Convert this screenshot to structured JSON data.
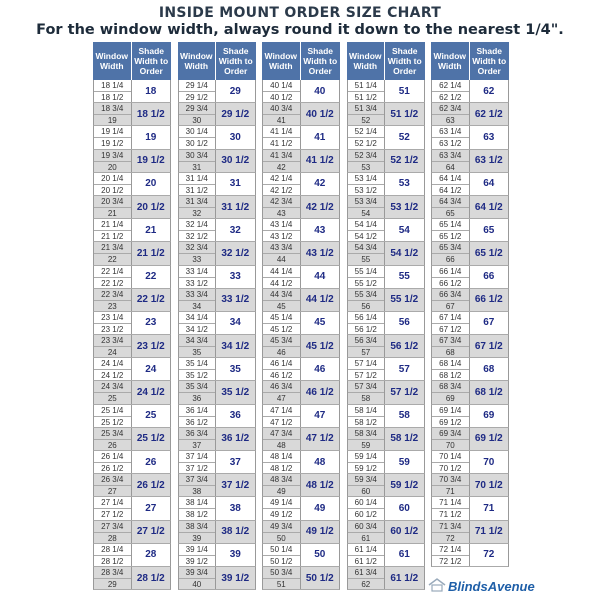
{
  "title": "INSIDE MOUNT ORDER SIZE CHART",
  "subtitle": "For the window width, always round it down to the nearest 1/4\".",
  "headers": {
    "window": "Window Width",
    "shade": "Shade Width to Order"
  },
  "colors": {
    "header": "#4f73a8",
    "shade_text": "#1e2a84",
    "alt_row": "#d9d9d9"
  },
  "logo": {
    "text": "BlindsAvenue",
    "icon": "house-icon"
  },
  "groups": [
    [
      [
        "18 1/4",
        "18 1/2",
        "18"
      ],
      [
        "18 3/4",
        "19",
        "18 1/2"
      ],
      [
        "19 1/4",
        "19 1/2",
        "19"
      ],
      [
        "19 3/4",
        "20",
        "19 1/2"
      ],
      [
        "20 1/4",
        "20 1/2",
        "20"
      ],
      [
        "20 3/4",
        "21",
        "20 1/2"
      ],
      [
        "21 1/4",
        "21 1/2",
        "21"
      ],
      [
        "21 3/4",
        "22",
        "21 1/2"
      ],
      [
        "22 1/4",
        "22 1/2",
        "22"
      ],
      [
        "22 3/4",
        "23",
        "22 1/2"
      ],
      [
        "23 1/4",
        "23 1/2",
        "23"
      ],
      [
        "23 3/4",
        "24",
        "23 1/2"
      ],
      [
        "24 1/4",
        "24 1/2",
        "24"
      ],
      [
        "24 3/4",
        "25",
        "24 1/2"
      ],
      [
        "25 1/4",
        "25 1/2",
        "25"
      ],
      [
        "25 3/4",
        "26",
        "25 1/2"
      ],
      [
        "26 1/4",
        "26 1/2",
        "26"
      ],
      [
        "26 3/4",
        "27",
        "26 1/2"
      ],
      [
        "27 1/4",
        "27 1/2",
        "27"
      ],
      [
        "27 3/4",
        "28",
        "27 1/2"
      ],
      [
        "28 1/4",
        "28 1/2",
        "28"
      ],
      [
        "28 3/4",
        "29",
        "28 1/2"
      ]
    ],
    [
      [
        "29 1/4",
        "29 1/2",
        "29"
      ],
      [
        "29 3/4",
        "30",
        "29 1/2"
      ],
      [
        "30 1/4",
        "30 1/2",
        "30"
      ],
      [
        "30 3/4",
        "31",
        "30 1/2"
      ],
      [
        "31 1/4",
        "31 1/2",
        "31"
      ],
      [
        "31 3/4",
        "32",
        "31 1/2"
      ],
      [
        "32 1/4",
        "32 1/2",
        "32"
      ],
      [
        "32 3/4",
        "33",
        "32 1/2"
      ],
      [
        "33 1/4",
        "33 1/2",
        "33"
      ],
      [
        "33 3/4",
        "34",
        "33 1/2"
      ],
      [
        "34 1/4",
        "34 1/2",
        "34"
      ],
      [
        "34 3/4",
        "35",
        "34 1/2"
      ],
      [
        "35 1/4",
        "35 1/2",
        "35"
      ],
      [
        "35 3/4",
        "36",
        "35 1/2"
      ],
      [
        "36 1/4",
        "36 1/2",
        "36"
      ],
      [
        "36 3/4",
        "37",
        "36 1/2"
      ],
      [
        "37 1/4",
        "37 1/2",
        "37"
      ],
      [
        "37 3/4",
        "38",
        "37 1/2"
      ],
      [
        "38 1/4",
        "38 1/2",
        "38"
      ],
      [
        "38 3/4",
        "39",
        "38 1/2"
      ],
      [
        "39 1/4",
        "39 1/2",
        "39"
      ],
      [
        "39 3/4",
        "40",
        "39 1/2"
      ]
    ],
    [
      [
        "40 1/4",
        "40 1/2",
        "40"
      ],
      [
        "40 3/4",
        "41",
        "40 1/2"
      ],
      [
        "41 1/4",
        "41 1/2",
        "41"
      ],
      [
        "41 3/4",
        "42",
        "41 1/2"
      ],
      [
        "42 1/4",
        "42 1/2",
        "42"
      ],
      [
        "42 3/4",
        "43",
        "42 1/2"
      ],
      [
        "43 1/4",
        "43 1/2",
        "43"
      ],
      [
        "43 3/4",
        "44",
        "43 1/2"
      ],
      [
        "44 1/4",
        "44 1/2",
        "44"
      ],
      [
        "44 3/4",
        "45",
        "44 1/2"
      ],
      [
        "45 1/4",
        "45 1/2",
        "45"
      ],
      [
        "45 3/4",
        "46",
        "45 1/2"
      ],
      [
        "46 1/4",
        "46 1/2",
        "46"
      ],
      [
        "46 3/4",
        "47",
        "46 1/2"
      ],
      [
        "47 1/4",
        "47 1/2",
        "47"
      ],
      [
        "47 3/4",
        "48",
        "47 1/2"
      ],
      [
        "48 1/4",
        "48 1/2",
        "48"
      ],
      [
        "48 3/4",
        "49",
        "48 1/2"
      ],
      [
        "49 1/4",
        "49 1/2",
        "49"
      ],
      [
        "49 3/4",
        "50",
        "49 1/2"
      ],
      [
        "50 1/4",
        "50 1/2",
        "50"
      ],
      [
        "50 3/4",
        "51",
        "50 1/2"
      ]
    ],
    [
      [
        "51 1/4",
        "51 1/2",
        "51"
      ],
      [
        "51 3/4",
        "52",
        "51 1/2"
      ],
      [
        "52 1/4",
        "52 1/2",
        "52"
      ],
      [
        "52 3/4",
        "53",
        "52 1/2"
      ],
      [
        "53 1/4",
        "53 1/2",
        "53"
      ],
      [
        "53 3/4",
        "54",
        "53 1/2"
      ],
      [
        "54 1/4",
        "54 1/2",
        "54"
      ],
      [
        "54 3/4",
        "55",
        "54 1/2"
      ],
      [
        "55 1/4",
        "55 1/2",
        "55"
      ],
      [
        "55 3/4",
        "56",
        "55 1/2"
      ],
      [
        "56 1/4",
        "56 1/2",
        "56"
      ],
      [
        "56 3/4",
        "57",
        "56 1/2"
      ],
      [
        "57 1/4",
        "57 1/2",
        "57"
      ],
      [
        "57 3/4",
        "58",
        "57 1/2"
      ],
      [
        "58 1/4",
        "58 1/2",
        "58"
      ],
      [
        "58 3/4",
        "59",
        "58 1/2"
      ],
      [
        "59 1/4",
        "59 1/2",
        "59"
      ],
      [
        "59 3/4",
        "60",
        "59 1/2"
      ],
      [
        "60 1/4",
        "60 1/2",
        "60"
      ],
      [
        "60 3/4",
        "61",
        "60 1/2"
      ],
      [
        "61 1/4",
        "61 1/2",
        "61"
      ],
      [
        "61 3/4",
        "62",
        "61 1/2"
      ]
    ],
    [
      [
        "62 1/4",
        "62 1/2",
        "62"
      ],
      [
        "62 3/4",
        "63",
        "62 1/2"
      ],
      [
        "63 1/4",
        "63 1/2",
        "63"
      ],
      [
        "63 3/4",
        "64",
        "63 1/2"
      ],
      [
        "64 1/4",
        "64 1/2",
        "64"
      ],
      [
        "64 3/4",
        "65",
        "64 1/2"
      ],
      [
        "65 1/4",
        "65 1/2",
        "65"
      ],
      [
        "65 3/4",
        "66",
        "65 1/2"
      ],
      [
        "66 1/4",
        "66 1/2",
        "66"
      ],
      [
        "66 3/4",
        "67",
        "66 1/2"
      ],
      [
        "67 1/4",
        "67 1/2",
        "67"
      ],
      [
        "67 3/4",
        "68",
        "67 1/2"
      ],
      [
        "68 1/4",
        "68 1/2",
        "68"
      ],
      [
        "68 3/4",
        "69",
        "68 1/2"
      ],
      [
        "69 1/4",
        "69 1/2",
        "69"
      ],
      [
        "69 3/4",
        "70",
        "69 1/2"
      ],
      [
        "70 1/4",
        "70 1/2",
        "70"
      ],
      [
        "70 3/4",
        "71",
        "70 1/2"
      ],
      [
        "71 1/4",
        "71 1/2",
        "71"
      ],
      [
        "71 3/4",
        "72",
        "71 1/2"
      ],
      [
        "72 1/4",
        "72 1/2",
        "72"
      ]
    ]
  ]
}
